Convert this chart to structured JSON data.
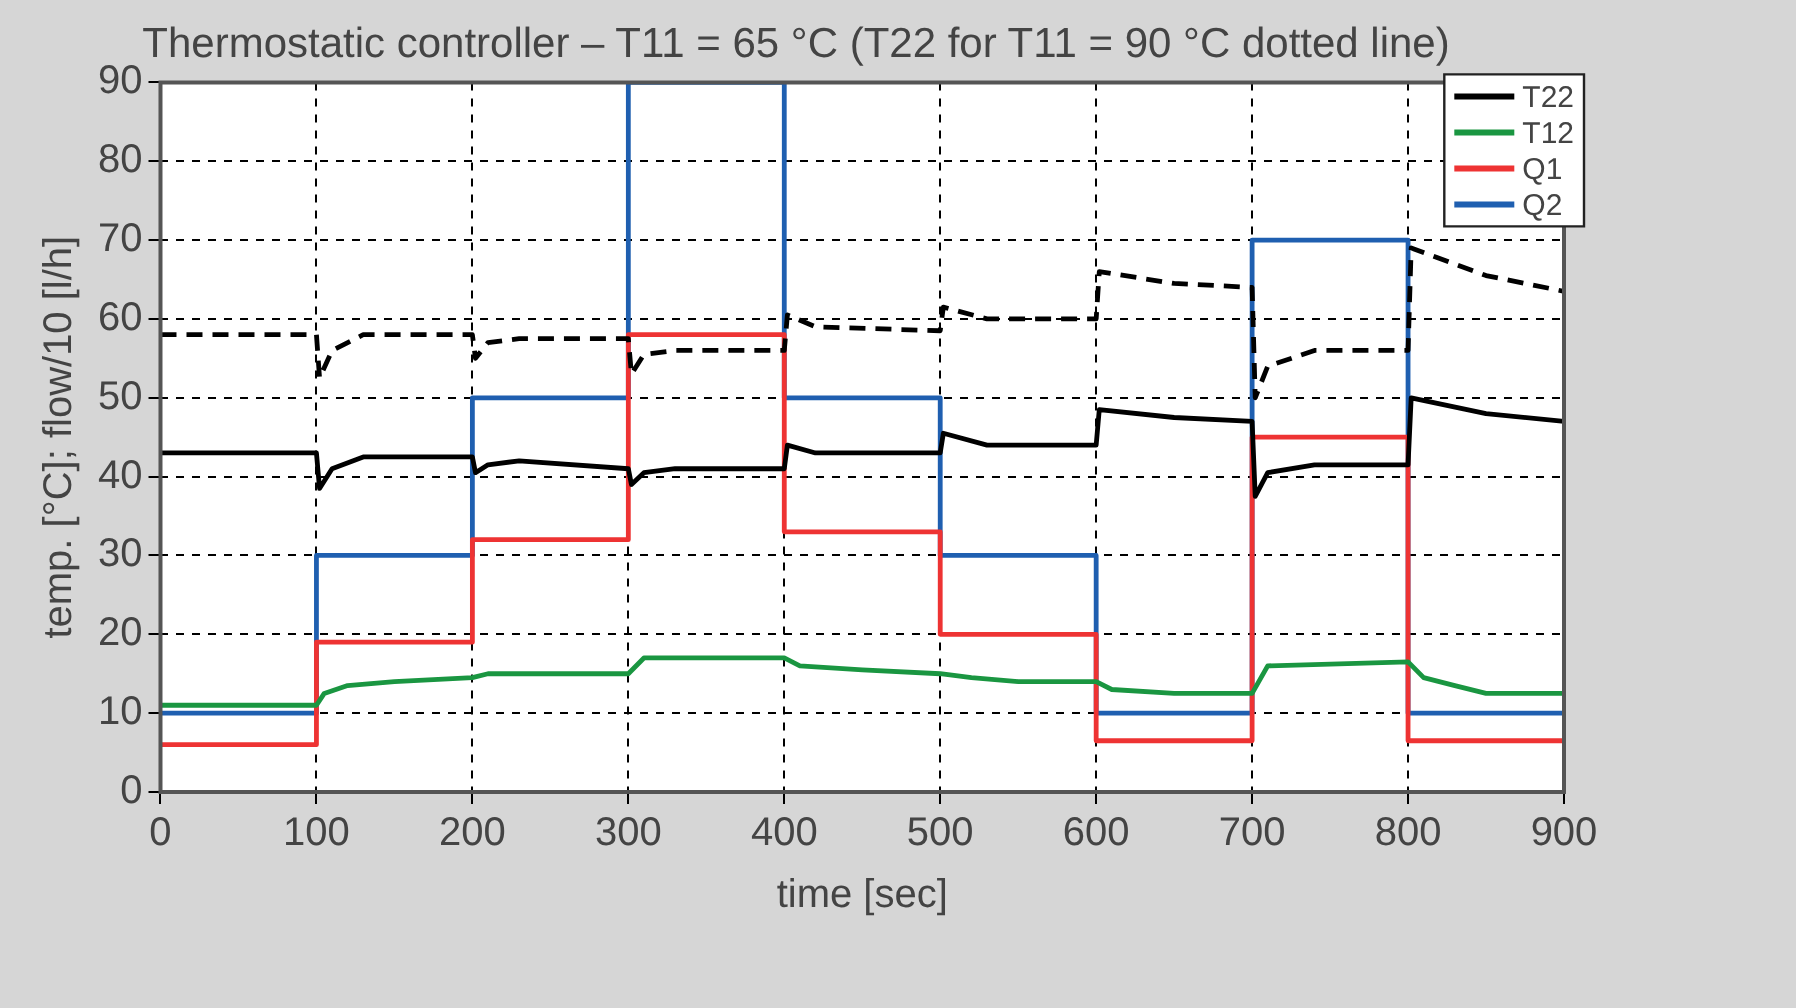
{
  "chart_data": {
    "type": "line",
    "title": "Thermostatic controller – T11 = 65 °C (T22 for T11 = 90 °C dotted line)",
    "xlabel": "time [sec]",
    "ylabel": "temp. [°C]; flow/10 [l/h]",
    "xlim": [
      0,
      900
    ],
    "xticks": [
      0,
      100,
      200,
      300,
      400,
      500,
      600,
      700,
      800,
      900
    ],
    "ylim": [
      0,
      90
    ],
    "yticks": [
      0,
      10,
      20,
      30,
      40,
      50,
      60,
      70,
      80,
      90
    ],
    "grid": true,
    "legend": "top right",
    "marker": "none",
    "series": [
      {
        "name": "T22",
        "color": "#000000",
        "line_style": "solid",
        "x": [
          0,
          100,
          102,
          110,
          130,
          200,
          202,
          210,
          230,
          300,
          302,
          310,
          330,
          400,
          402,
          420,
          500,
          502,
          530,
          600,
          602,
          650,
          700,
          702,
          710,
          740,
          800,
          802,
          850,
          900
        ],
        "values": [
          43,
          43,
          38.5,
          41,
          42.5,
          42.5,
          40.5,
          41.5,
          42,
          41,
          39,
          40.5,
          41,
          41,
          44,
          43,
          43,
          45.5,
          44,
          44,
          48.5,
          47.5,
          47,
          37.5,
          40.5,
          41.5,
          41.5,
          50,
          48,
          47
        ]
      },
      {
        "color": "#000000",
        "line_style": "dashed",
        "x": [
          0,
          100,
          102,
          110,
          130,
          200,
          202,
          210,
          230,
          300,
          302,
          310,
          330,
          400,
          402,
          420,
          500,
          502,
          530,
          600,
          602,
          650,
          700,
          702,
          710,
          740,
          800,
          802,
          850,
          900
        ],
        "values": [
          58,
          58,
          52.5,
          56,
          58,
          58,
          55,
          57,
          57.5,
          57.5,
          53,
          55.5,
          56,
          56,
          60.5,
          59,
          58.5,
          61.5,
          60,
          60,
          66,
          64.5,
          64,
          50,
          54,
          56,
          56,
          69,
          65.5,
          63.5
        ]
      },
      {
        "name": "T12",
        "color": "#1a9641",
        "line_style": "solid",
        "x": [
          0,
          100,
          105,
          120,
          150,
          200,
          210,
          300,
          310,
          400,
          410,
          450,
          500,
          520,
          550,
          600,
          610,
          650,
          700,
          710,
          800,
          810,
          830,
          850,
          900
        ],
        "values": [
          11,
          11,
          12.5,
          13.5,
          14,
          14.5,
          15,
          15,
          17,
          17,
          16,
          15.5,
          15,
          14.5,
          14,
          14,
          13,
          12.5,
          12.5,
          16,
          16.5,
          14.5,
          13.5,
          12.5,
          12.5
        ]
      },
      {
        "name": "Q1",
        "color": "#ee3333",
        "line_style": "solid",
        "x": [
          0,
          100,
          100,
          200,
          200,
          300,
          300,
          400,
          400,
          500,
          500,
          600,
          600,
          700,
          700,
          800,
          800,
          900
        ],
        "values": [
          6,
          6,
          19,
          19,
          32,
          32,
          58,
          58,
          33,
          33,
          20,
          20,
          6.5,
          6.5,
          45,
          45,
          6.5,
          6.5
        ]
      },
      {
        "name": "Q2",
        "color": "#1f5fb0",
        "line_style": "solid",
        "x": [
          0,
          100,
          100,
          200,
          200,
          300,
          300,
          400,
          400,
          500,
          500,
          600,
          600,
          700,
          700,
          800,
          800,
          900
        ],
        "values": [
          10,
          10,
          30,
          30,
          50,
          50,
          90,
          90,
          50,
          50,
          30,
          30,
          10,
          10,
          70,
          70,
          10,
          10
        ]
      }
    ]
  }
}
